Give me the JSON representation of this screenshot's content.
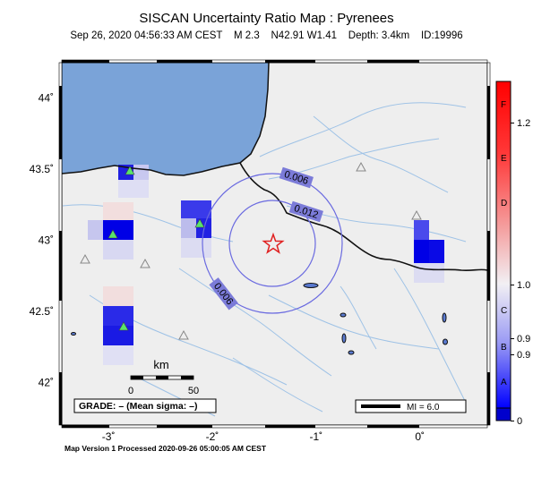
{
  "header": {
    "title": "SISCAN Uncertainty Ratio Map : Pyrenees",
    "subtitle": "Sep 26, 2020 04:56:33 AM CEST    M 2.3    N42.91 W1.41    Depth: 3.4km    ID:19996"
  },
  "map": {
    "lat_ticks": [
      {
        "label": "44˚",
        "value": 44.0
      },
      {
        "label": "43.5˚",
        "value": 43.5
      },
      {
        "label": "43˚",
        "value": 43.0
      },
      {
        "label": "42.5˚",
        "value": 42.5
      },
      {
        "label": "42˚",
        "value": 42.0
      }
    ],
    "lon_ticks": [
      {
        "label": "-3˚",
        "value": -3
      },
      {
        "label": "-2˚",
        "value": -2
      },
      {
        "label": "-1˚",
        "value": -1
      },
      {
        "label": "0˚",
        "value": 0
      }
    ],
    "lon_range": [
      -3.45,
      0.65
    ],
    "lat_range": [
      41.7,
      44.25
    ],
    "contour_labels": [
      "0.006",
      "0.012",
      "0.006"
    ],
    "epicenter": {
      "lat": 42.91,
      "lon": -1.41
    },
    "scale_bar": {
      "title": "km",
      "start": "0",
      "end": "50"
    },
    "grade_box": "GRADE: – (Mean sigma: –)",
    "mi_legend": "MI = 6.0",
    "colors": {
      "sea": "#7aa3d8",
      "land": "#eeeeee",
      "river": "#9ec2e6",
      "border": "#111111",
      "station": "#59e46a",
      "contour": "#6a6ae0"
    }
  },
  "colorbar": {
    "grade_labels": [
      "F",
      "E",
      "D",
      "C",
      "B",
      "A"
    ],
    "value_labels": [
      "1.2",
      "1.0",
      "0.9",
      "0.9",
      "0"
    ]
  },
  "footer": {
    "text": "Map Version 1 Processed 2020-09-26 05:00:05 AM CEST"
  }
}
